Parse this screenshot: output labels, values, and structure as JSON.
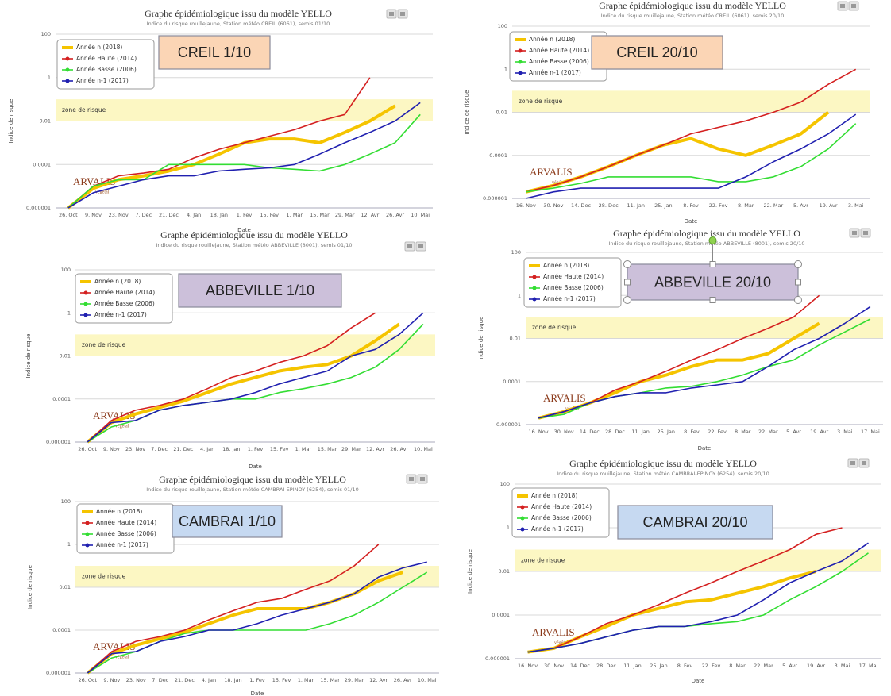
{
  "chart_data": [
    {
      "type": "line",
      "title": "Graphe épidémiologique issu du modèle YELLO",
      "subtitle": "Indice du risque rouillejaune, Station météo CREIL (6061), semis 01/10",
      "annotation": "CREIL 1/10",
      "annotation_color": "#fbd5b5",
      "x_label": "Date",
      "y_label": "Indice de risque",
      "logo": "ARVALIS",
      "logo_sub": "végétal",
      "categories": [
        "26. Oct",
        "9. Nov",
        "23. Nov",
        "7. Dec",
        "21. Dec",
        "4. Jan",
        "18. Jan",
        "1. Fev",
        "15. Fev",
        "1. Mar",
        "15. Mar",
        "29. Mar",
        "12. Avr",
        "26. Avr",
        "10. Mai"
      ],
      "series": [
        {
          "name": "Année n (2018)",
          "color": "#f5c400",
          "values": [
            1e-06,
            8e-06,
            2e-05,
            3e-05,
            5e-05,
            0.0001,
            0.0003,
            0.001,
            0.0015,
            0.0015,
            0.001,
            0.003,
            0.01,
            0.05,
            null
          ]
        },
        {
          "name": "Année Haute (2014)",
          "color": "#d42020",
          "values": [
            1e-06,
            1e-05,
            3e-05,
            4e-05,
            6e-05,
            0.0002,
            0.0005,
            0.001,
            0.002,
            0.004,
            0.01,
            0.02,
            1,
            null,
            null
          ]
        },
        {
          "name": "Année Basse (2006)",
          "color": "#33dd33",
          "values": [
            1e-06,
            1e-05,
            2e-05,
            2e-05,
            0.0001,
            0.0001,
            0.0001,
            0.0001,
            7e-05,
            6e-05,
            5e-05,
            0.0001,
            0.0003,
            0.001,
            0.02
          ]
        },
        {
          "name": "Année n-1 (2017)",
          "color": "#2020b0",
          "values": [
            1e-06,
            5e-06,
            1e-05,
            2e-05,
            3e-05,
            3e-05,
            5e-05,
            6e-05,
            7e-05,
            0.0001,
            0.0003,
            0.001,
            0.003,
            0.01,
            0.07
          ]
        }
      ],
      "risk_zone": {
        "label": "zone de risque",
        "range": [
          0.01,
          0.1
        ]
      },
      "ylim": [
        1e-06,
        100
      ],
      "yticks": [
        1e-06,
        0.0001,
        0.01,
        1,
        100
      ],
      "log_y": true,
      "grid": true,
      "legend": "top-left"
    },
    {
      "type": "line",
      "title": "Graphe épidémiologique issu du modèle YELLO",
      "subtitle": "Indice du risque rouillejaune, Station météo CREIL (6061), semis 20/10",
      "annotation": "CREIL 20/10",
      "annotation_color": "#fbd5b5",
      "x_label": "Date",
      "y_label": "Indice de risque",
      "logo": "ARVALIS",
      "logo_sub": "végétal",
      "categories": [
        "16. Nov",
        "30. Nov",
        "14. Dec",
        "28. Dec",
        "11. Jan",
        "25. Jan",
        "8. Fev",
        "22. Fev",
        "8. Mar",
        "22. Mar",
        "5. Avr",
        "19. Avr",
        "3. Mai"
      ],
      "series": [
        {
          "name": "Année n (2018)",
          "color": "#f5c400",
          "values": [
            2e-06,
            4e-06,
            1e-05,
            3e-05,
            0.0001,
            0.0003,
            0.0006,
            0.0002,
            0.0001,
            0.0003,
            0.001,
            0.01,
            null
          ]
        },
        {
          "name": "Année Haute (2014)",
          "color": "#d42020",
          "values": [
            2e-06,
            4e-06,
            1e-05,
            3e-05,
            0.0001,
            0.0003,
            0.001,
            0.002,
            0.004,
            0.01,
            0.03,
            0.2,
            1
          ]
        },
        {
          "name": "Année Basse (2006)",
          "color": "#33dd33",
          "values": [
            2e-06,
            3e-06,
            5e-06,
            1e-05,
            1e-05,
            1e-05,
            1e-05,
            6e-06,
            6e-06,
            1e-05,
            3e-05,
            0.0002,
            0.003
          ]
        },
        {
          "name": "Année n-1 (2017)",
          "color": "#2020b0",
          "values": [
            1e-06,
            2e-06,
            3e-06,
            3e-06,
            3e-06,
            3e-06,
            3e-06,
            3e-06,
            1e-05,
            5e-05,
            0.0002,
            0.001,
            0.008
          ]
        }
      ],
      "risk_zone": {
        "label": "zone de risque",
        "range": [
          0.01,
          0.1
        ]
      },
      "ylim": [
        1e-06,
        100
      ],
      "yticks": [
        1e-06,
        0.0001,
        0.01,
        1,
        100
      ],
      "log_y": true,
      "grid": true,
      "legend": "top-left"
    },
    {
      "type": "line",
      "title": "Graphe épidémiologique issu du modèle YELLO",
      "subtitle": "Indice du risque rouillejaune, Station météo ABBEVILLE (8001), semis 01/10",
      "annotation": "ABBEVILLE 1/10",
      "annotation_color": "#ccc0da",
      "x_label": "Date",
      "y_label": "Indice de risque",
      "logo": "ARVALIS",
      "logo_sub": "végétal",
      "categories": [
        "26. Oct",
        "9. Nov",
        "23. Nov",
        "7. Dec",
        "21. Dec",
        "4. Jan",
        "18. Jan",
        "1. Fev",
        "15. Fev",
        "1. Mar",
        "15. Mar",
        "29. Mar",
        "12. Avr",
        "26. Avr",
        "10. Mai"
      ],
      "series": [
        {
          "name": "Année n (2018)",
          "color": "#f5c400",
          "values": [
            1e-06,
            8e-06,
            2e-05,
            4e-05,
            8e-05,
            0.0002,
            0.0005,
            0.001,
            0.002,
            0.003,
            0.004,
            0.01,
            0.05,
            0.3,
            null
          ]
        },
        {
          "name": "Année Haute (2014)",
          "color": "#d42020",
          "values": [
            1e-06,
            1e-05,
            3e-05,
            5e-05,
            0.0001,
            0.0003,
            0.001,
            0.002,
            0.005,
            0.01,
            0.03,
            0.2,
            1,
            null,
            null
          ]
        },
        {
          "name": "Année Basse (2006)",
          "color": "#33dd33",
          "values": [
            1e-06,
            5e-06,
            1e-05,
            3e-05,
            5e-05,
            7e-05,
            0.0001,
            0.0001,
            0.0002,
            0.0003,
            0.0005,
            0.001,
            0.003,
            0.02,
            0.3
          ]
        },
        {
          "name": "Année n-1 (2017)",
          "color": "#2020b0",
          "values": [
            1e-06,
            8e-06,
            1e-05,
            3e-05,
            5e-05,
            7e-05,
            0.0001,
            0.0002,
            0.0005,
            0.001,
            0.002,
            0.01,
            0.02,
            0.1,
            1
          ]
        }
      ],
      "risk_zone": {
        "label": "zone de risque",
        "range": [
          0.01,
          0.1
        ]
      },
      "ylim": [
        1e-06,
        100
      ],
      "yticks": [
        1e-06,
        0.0001,
        0.01,
        1,
        100
      ],
      "log_y": true,
      "grid": true,
      "legend": "top-left"
    },
    {
      "type": "line",
      "title": "Graphe épidémiologique issu du modèle YELLO",
      "subtitle": "Indice du risque rouillejaune, Station météo ABBEVILLE (8001), semis 20/10",
      "annotation": "ABBEVILLE 20/10",
      "annotation_color": "#ccc0da",
      "x_label": "Date",
      "y_label": "Indice de risque",
      "logo": "ARVALIS",
      "logo_sub": "végétal",
      "categories": [
        "16. Nov",
        "30. Nov",
        "14. Dec",
        "28. Dec",
        "11. Jan",
        "25. Jan",
        "8. Fev",
        "22. Fev",
        "8. Mar",
        "22. Mar",
        "5. Avr",
        "19. Avr",
        "3. Mai",
        "17. Mai"
      ],
      "series": [
        {
          "name": "Année n (2018)",
          "color": "#f5c400",
          "values": [
            2e-06,
            4e-06,
            1e-05,
            3e-05,
            0.0001,
            0.0002,
            0.0005,
            0.001,
            0.001,
            0.002,
            0.01,
            0.05,
            null,
            null
          ]
        },
        {
          "name": "Année Haute (2014)",
          "color": "#d42020",
          "values": [
            2e-06,
            4e-06,
            1e-05,
            4e-05,
            0.0001,
            0.0003,
            0.001,
            0.003,
            0.01,
            0.03,
            0.1,
            1,
            null,
            null
          ]
        },
        {
          "name": "Année Basse (2006)",
          "color": "#33dd33",
          "values": [
            2e-06,
            3e-06,
            1e-05,
            2e-05,
            3e-05,
            5e-05,
            6e-05,
            0.0001,
            0.0002,
            0.0005,
            0.001,
            0.005,
            0.02,
            0.08
          ]
        },
        {
          "name": "Année n-1 (2017)",
          "color": "#2020b0",
          "values": [
            2e-06,
            4e-06,
            1e-05,
            2e-05,
            3e-05,
            3e-05,
            5e-05,
            7e-05,
            0.0001,
            0.0005,
            0.003,
            0.01,
            0.05,
            0.3
          ]
        }
      ],
      "risk_zone": {
        "label": "zone de risque",
        "range": [
          0.01,
          0.1
        ]
      },
      "ylim": [
        1e-06,
        100
      ],
      "yticks": [
        1e-06,
        0.0001,
        0.01,
        1,
        100
      ],
      "log_y": true,
      "grid": true,
      "legend": "top-left"
    },
    {
      "type": "line",
      "title": "Graphe épidémiologique issu du modèle YELLO",
      "subtitle": "Indice du risque rouillejaune, Station météo CAMBRAI-EPINOY (6254), semis 01/10",
      "annotation": "CAMBRAI 1/10",
      "annotation_color": "#c6d9f1",
      "x_label": "Date",
      "y_label": "Indice de risque",
      "logo": "ARVALIS",
      "logo_sub": "végétal",
      "categories": [
        "26. Oct",
        "9. Nov",
        "23. Nov",
        "7. Dec",
        "21. Dec",
        "4. Jan",
        "18. Jan",
        "1. Fev",
        "15. Fev",
        "1. Mar",
        "15. Mar",
        "29. Mar",
        "12. Avr",
        "26. Avr",
        "10. Mai"
      ],
      "series": [
        {
          "name": "Année n (2018)",
          "color": "#f5c400",
          "values": [
            1e-06,
            8e-06,
            2e-05,
            4e-05,
            8e-05,
            0.0002,
            0.0005,
            0.001,
            0.001,
            0.001,
            0.002,
            0.005,
            0.02,
            0.05,
            null
          ]
        },
        {
          "name": "Année Haute (2014)",
          "color": "#d42020",
          "values": [
            1e-06,
            1e-05,
            3e-05,
            5e-05,
            0.0001,
            0.0003,
            0.0008,
            0.002,
            0.003,
            0.008,
            0.02,
            0.1,
            1,
            null,
            null
          ]
        },
        {
          "name": "Année Basse (2006)",
          "color": "#33dd33",
          "values": [
            1e-06,
            5e-06,
            1e-05,
            3e-05,
            7e-05,
            0.0001,
            0.0001,
            0.0001,
            0.0001,
            0.0001,
            0.0002,
            0.0005,
            0.002,
            0.01,
            0.05
          ]
        },
        {
          "name": "Année n-1 (2017)",
          "color": "#2020b0",
          "values": [
            1e-06,
            8e-06,
            1e-05,
            3e-05,
            5e-05,
            0.0001,
            0.0001,
            0.0002,
            0.0005,
            0.001,
            0.002,
            0.005,
            0.03,
            0.08,
            0.15
          ]
        }
      ],
      "risk_zone": {
        "label": "zone de risque",
        "range": [
          0.01,
          0.1
        ]
      },
      "ylim": [
        1e-06,
        100
      ],
      "yticks": [
        1e-06,
        0.0001,
        0.01,
        1,
        100
      ],
      "log_y": true,
      "grid": true,
      "legend": "top-left"
    },
    {
      "type": "line",
      "title": "Graphe épidémiologique issu du modèle YELLO",
      "subtitle": "Indice du risque rouillejaune, Station météo CAMBRAI-EPINOY (6254), semis 20/10",
      "annotation": "CAMBRAI 20/10",
      "annotation_color": "#c6d9f1",
      "x_label": "Date",
      "y_label": "Indice de risque",
      "logo": "ARVALIS",
      "logo_sub": "végétal",
      "categories": [
        "16. Nov",
        "30. Nov",
        "14. Dec",
        "28. Dec",
        "11. Jan",
        "25. Jan",
        "8. Fev",
        "22. Fev",
        "8. Mar",
        "22. Mar",
        "5. Avr",
        "19. Avr",
        "3. Mai",
        "17. Mai"
      ],
      "series": [
        {
          "name": "Année n (2018)",
          "color": "#f5c400",
          "values": [
            2e-06,
            3e-06,
            1e-05,
            3e-05,
            0.0001,
            0.0002,
            0.0004,
            0.0005,
            0.001,
            0.002,
            0.005,
            0.01,
            null,
            null
          ]
        },
        {
          "name": "Année Haute (2014)",
          "color": "#d42020",
          "values": [
            2e-06,
            3e-06,
            1e-05,
            4e-05,
            0.0001,
            0.0003,
            0.001,
            0.003,
            0.01,
            0.03,
            0.1,
            0.5,
            1,
            null
          ]
        },
        {
          "name": "Année Basse (2006)",
          "color": "#33dd33",
          "values": [
            2e-06,
            3e-06,
            5e-06,
            1e-05,
            2e-05,
            3e-05,
            3e-05,
            4e-05,
            5e-05,
            0.0001,
            0.0005,
            0.002,
            0.01,
            0.07
          ]
        },
        {
          "name": "Année n-1 (2017)",
          "color": "#2020b0",
          "values": [
            2e-06,
            3e-06,
            5e-06,
            1e-05,
            2e-05,
            3e-05,
            3e-05,
            5e-05,
            0.0001,
            0.0005,
            0.003,
            0.01,
            0.03,
            0.2
          ]
        }
      ],
      "risk_zone": {
        "label": "zone de risque",
        "range": [
          0.01,
          0.1
        ]
      },
      "ylim": [
        1e-06,
        100
      ],
      "yticks": [
        1e-06,
        0.0001,
        0.01,
        1,
        100
      ],
      "log_y": true,
      "grid": true,
      "legend": "top-left"
    }
  ]
}
